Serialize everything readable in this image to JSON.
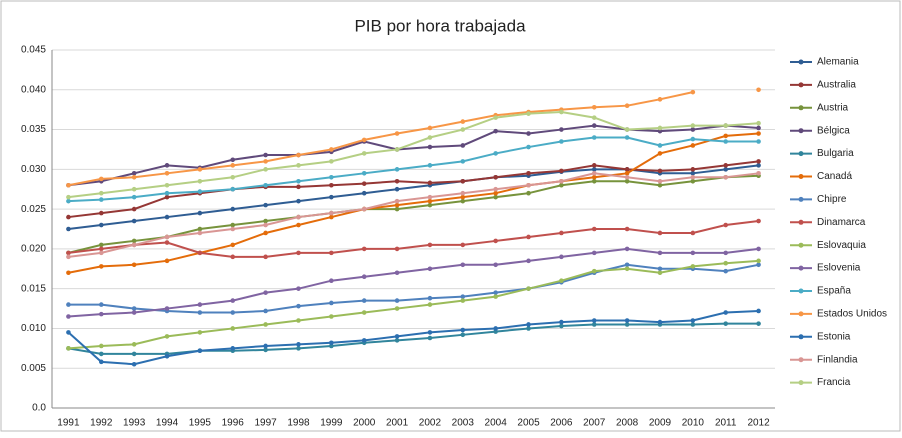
{
  "chart_data": {
    "type": "line",
    "title": "PIB por hora trabajada",
    "categories": [
      "1991",
      "1992",
      "1993",
      "1994",
      "1995",
      "1996",
      "1997",
      "1998",
      "1999",
      "2000",
      "2001",
      "2002",
      "2003",
      "2004",
      "2005",
      "2006",
      "2007",
      "2008",
      "2009",
      "2010",
      "2011",
      "2012"
    ],
    "ylim": [
      0,
      0.045
    ],
    "yticks": [
      {
        "value": 0,
        "label": "0.0"
      },
      0.005,
      {
        "value": 0.01,
        "label": "0.010"
      },
      0.015,
      {
        "value": 0.02,
        "label": "0.020"
      },
      0.025,
      {
        "value": 0.03,
        "label": "0.030"
      },
      0.035,
      {
        "value": 0.04,
        "label": "0.040"
      },
      0.045
    ],
    "grid": true,
    "legend": "right",
    "series": [
      {
        "name": "Alemania",
        "color": "#2f5d93",
        "values": [
          0.0225,
          0.023,
          0.0235,
          0.024,
          0.0245,
          0.025,
          0.0255,
          0.026,
          0.0265,
          0.027,
          0.0275,
          0.028,
          0.0285,
          0.029,
          0.0292,
          0.0297,
          0.03,
          0.03,
          0.0295,
          0.0295,
          0.03,
          0.0305
        ]
      },
      {
        "name": "Australia",
        "color": "#953735",
        "values": [
          0.024,
          0.0245,
          0.025,
          0.0265,
          0.027,
          0.0275,
          0.0278,
          0.0278,
          0.028,
          0.0282,
          0.0285,
          0.0283,
          0.0285,
          0.029,
          0.0295,
          0.0298,
          0.0305,
          0.03,
          0.0298,
          0.03,
          0.0305,
          0.031
        ]
      },
      {
        "name": "Austria",
        "color": "#77933c",
        "values": [
          0.0195,
          0.0205,
          0.021,
          0.0215,
          0.0225,
          0.023,
          0.0235,
          0.024,
          0.0245,
          0.025,
          0.025,
          0.0255,
          0.026,
          0.0265,
          0.027,
          0.028,
          0.0285,
          0.0285,
          0.028,
          0.0285,
          0.029,
          0.0292
        ]
      },
      {
        "name": "Bélgica",
        "color": "#604a7b",
        "values": [
          0.028,
          0.0285,
          0.0295,
          0.0305,
          0.0302,
          0.0312,
          0.0318,
          0.0318,
          0.0322,
          0.0335,
          0.0325,
          0.0328,
          0.033,
          0.0348,
          0.0345,
          0.035,
          0.0355,
          0.035,
          0.0348,
          0.035,
          0.0355,
          0.0352
        ]
      },
      {
        "name": "Bulgaria",
        "color": "#31859c",
        "values": [
          0.0075,
          0.0068,
          0.0068,
          0.0068,
          0.0072,
          0.0072,
          0.0073,
          0.0075,
          0.0078,
          0.0082,
          0.0085,
          0.0088,
          0.0092,
          0.0096,
          0.01,
          0.0103,
          0.0105,
          0.0105,
          0.0105,
          0.0105,
          0.0106,
          0.0106
        ]
      },
      {
        "name": "Canadá",
        "color": "#e46c0a",
        "values": [
          0.017,
          0.0178,
          0.018,
          0.0185,
          0.0195,
          0.0205,
          0.022,
          0.023,
          0.024,
          0.025,
          0.0255,
          0.026,
          0.0265,
          0.027,
          0.028,
          0.0285,
          0.029,
          0.0295,
          0.032,
          0.033,
          0.0342,
          0.0345
        ]
      },
      {
        "name": "Chipre",
        "color": "#4f81bd",
        "values": [
          0.013,
          0.013,
          0.0125,
          0.0122,
          0.012,
          0.012,
          0.0122,
          0.0128,
          0.0132,
          0.0135,
          0.0135,
          0.0138,
          0.014,
          0.0145,
          0.015,
          0.0158,
          0.017,
          0.018,
          0.0175,
          0.0175,
          0.0172,
          0.018
        ]
      },
      {
        "name": "Dinamarca",
        "color": "#c0504d",
        "values": [
          0.0195,
          0.02,
          0.0205,
          0.0208,
          0.0195,
          0.019,
          0.019,
          0.0195,
          0.0195,
          0.02,
          0.02,
          0.0205,
          0.0205,
          0.021,
          0.0215,
          0.022,
          0.0225,
          0.0225,
          0.022,
          0.022,
          0.023,
          0.0235
        ]
      },
      {
        "name": "Eslovaquia",
        "color": "#9bbb59",
        "values": [
          0.0075,
          0.0078,
          0.008,
          0.009,
          0.0095,
          0.01,
          0.0105,
          0.011,
          0.0115,
          0.012,
          0.0125,
          0.013,
          0.0135,
          0.014,
          0.015,
          0.016,
          0.0172,
          0.0175,
          0.017,
          0.0178,
          0.0182,
          0.0185
        ]
      },
      {
        "name": "Eslovenia",
        "color": "#8064a2",
        "values": [
          0.0115,
          0.0118,
          0.012,
          0.0125,
          0.013,
          0.0135,
          0.0145,
          0.015,
          0.016,
          0.0165,
          0.017,
          0.0175,
          0.018,
          0.018,
          0.0185,
          0.019,
          0.0195,
          0.02,
          0.0195,
          0.0195,
          0.0195,
          0.02
        ]
      },
      {
        "name": "España",
        "color": "#4bacc6",
        "values": [
          0.026,
          0.0262,
          0.0265,
          0.027,
          0.0272,
          0.0275,
          0.028,
          0.0285,
          0.029,
          0.0295,
          0.03,
          0.0305,
          0.031,
          0.032,
          0.0328,
          0.0335,
          0.034,
          0.034,
          0.033,
          0.0338,
          0.0335,
          0.0335
        ]
      },
      {
        "name": "Estados Unidos",
        "color": "#f79646",
        "values": [
          0.028,
          0.0288,
          0.029,
          0.0295,
          0.03,
          0.0305,
          0.031,
          0.0318,
          0.0325,
          0.0337,
          0.0345,
          0.0352,
          0.036,
          0.0368,
          0.0372,
          0.0375,
          0.0378,
          0.038,
          0.0388,
          0.0397,
          null,
          0.04
        ]
      },
      {
        "name": "Estonia",
        "color": "#2c6fb0",
        "values": [
          0.0095,
          0.0058,
          0.0055,
          0.0065,
          0.0072,
          0.0075,
          0.0078,
          0.008,
          0.0082,
          0.0085,
          0.009,
          0.0095,
          0.0098,
          0.01,
          0.0105,
          0.0108,
          0.011,
          0.011,
          0.0108,
          0.011,
          0.012,
          0.0122
        ]
      },
      {
        "name": "Finlandia",
        "color": "#d99694",
        "values": [
          0.019,
          0.0195,
          0.0205,
          0.0215,
          0.022,
          0.0225,
          0.023,
          0.024,
          0.0245,
          0.025,
          0.026,
          0.0265,
          0.027,
          0.0275,
          0.028,
          0.0285,
          0.0295,
          0.029,
          0.0285,
          0.029,
          0.029,
          0.0295
        ]
      },
      {
        "name": "Francia",
        "color": "#b5cf84",
        "values": [
          0.0265,
          0.027,
          0.0275,
          0.028,
          0.0285,
          0.029,
          0.03,
          0.0305,
          0.031,
          0.032,
          0.0325,
          0.034,
          0.035,
          0.0365,
          0.037,
          0.0372,
          0.0365,
          0.035,
          0.0352,
          0.0355,
          0.0355,
          0.0358
        ]
      }
    ]
  }
}
